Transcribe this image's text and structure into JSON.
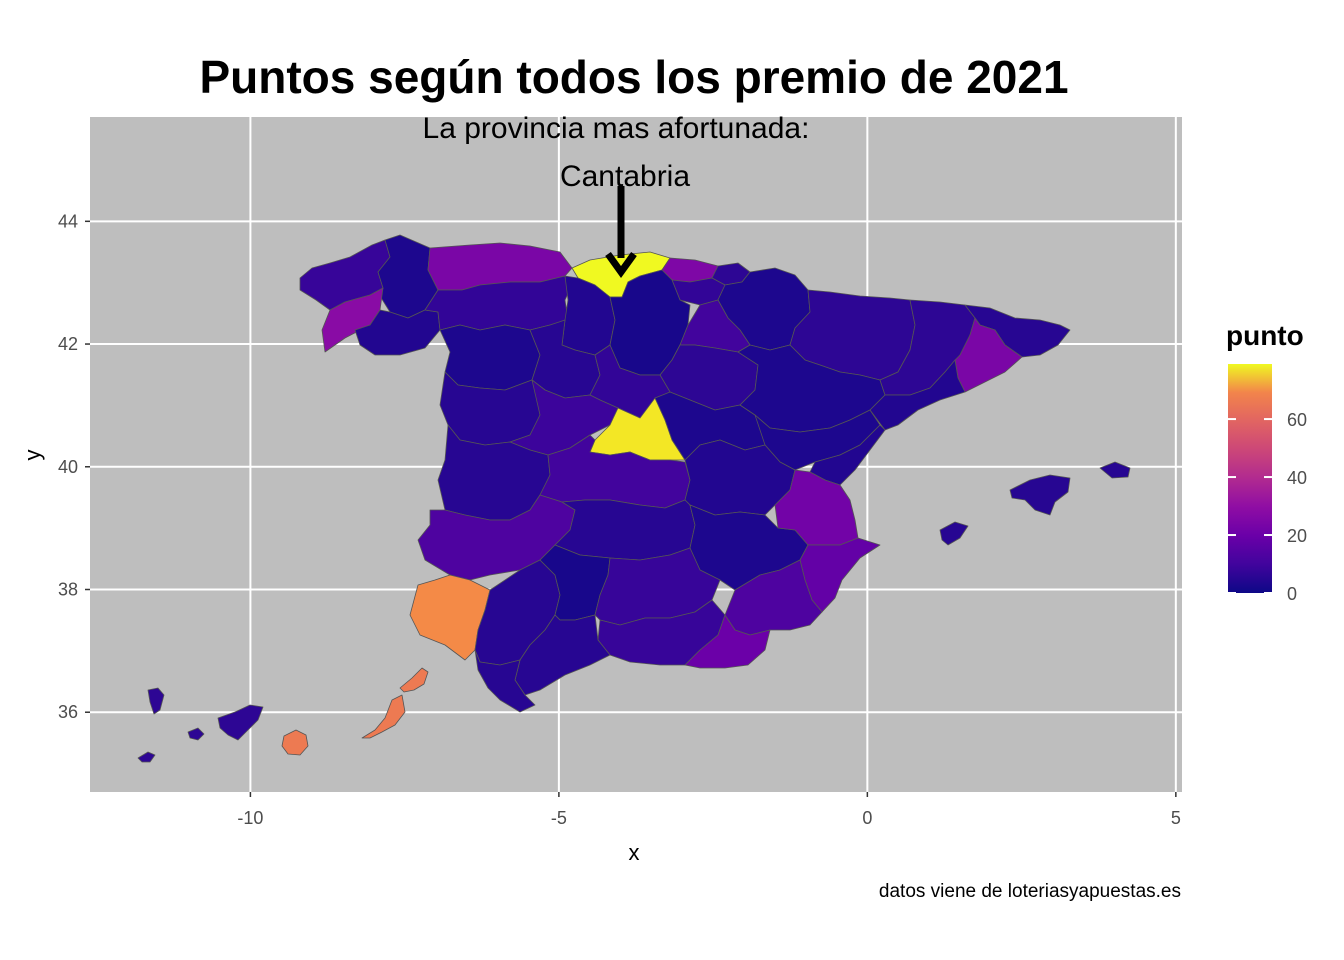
{
  "title": "Puntos según todos los premio de 2021",
  "annotation": {
    "line1": "La provincia mas afortunada:",
    "line2": "Cantabria"
  },
  "caption": "datos viene de loteriasyapuestas.es",
  "axes": {
    "x_title": "x",
    "y_title": "y",
    "x_ticks": [
      -10,
      -5,
      0,
      5
    ],
    "y_ticks": [
      36,
      38,
      40,
      42,
      44
    ],
    "x_range": [
      -12.6,
      5.1
    ],
    "y_range": [
      34.7,
      45.7
    ]
  },
  "legend": {
    "title": "punto",
    "ticks": [
      0,
      20,
      40,
      60
    ],
    "range": [
      0,
      79
    ],
    "colormap": "plasma"
  },
  "colors": {
    "panel_bg": "#bebebe",
    "grid": "#ffffff",
    "border": "#555555",
    "arrow": "#000000"
  },
  "map_data": {
    "highlight": "Cantabria",
    "regions": [
      {
        "name": "A Coruña",
        "value": 8
      },
      {
        "name": "Lugo",
        "value": 3
      },
      {
        "name": "Pontevedra",
        "value": 28
      },
      {
        "name": "Ourense",
        "value": 4
      },
      {
        "name": "Asturias",
        "value": 24
      },
      {
        "name": "Cantabria",
        "value": 79
      },
      {
        "name": "Bizkaia",
        "value": 25
      },
      {
        "name": "Gipuzkoa",
        "value": 6
      },
      {
        "name": "Araba",
        "value": 7
      },
      {
        "name": "Navarra",
        "value": 3
      },
      {
        "name": "León",
        "value": 7
      },
      {
        "name": "Palencia",
        "value": 4
      },
      {
        "name": "Burgos",
        "value": 2
      },
      {
        "name": "La Rioja",
        "value": 10
      },
      {
        "name": "Zamora",
        "value": 3
      },
      {
        "name": "Valladolid",
        "value": 5
      },
      {
        "name": "Soria",
        "value": 6
      },
      {
        "name": "Segovia",
        "value": 7
      },
      {
        "name": "Salamanca",
        "value": 5
      },
      {
        "name": "Ávila",
        "value": 9
      },
      {
        "name": "Madrid",
        "value": 78
      },
      {
        "name": "Guadalajara",
        "value": 3
      },
      {
        "name": "Huesca",
        "value": 6
      },
      {
        "name": "Zaragoza",
        "value": 3
      },
      {
        "name": "Teruel",
        "value": 3
      },
      {
        "name": "Lleida",
        "value": 6
      },
      {
        "name": "Girona",
        "value": 5
      },
      {
        "name": "Barcelona",
        "value": 24
      },
      {
        "name": "Tarragona",
        "value": 4
      },
      {
        "name": "Cáceres",
        "value": 5
      },
      {
        "name": "Toledo",
        "value": 10
      },
      {
        "name": "Cuenca",
        "value": 4
      },
      {
        "name": "Castellón",
        "value": 4
      },
      {
        "name": "Badajoz",
        "value": 13
      },
      {
        "name": "Ciudad Real",
        "value": 5
      },
      {
        "name": "Albacete",
        "value": 3
      },
      {
        "name": "Valencia",
        "value": 22
      },
      {
        "name": "Alicante",
        "value": 18
      },
      {
        "name": "Huelva",
        "value": 70
      },
      {
        "name": "Sevilla",
        "value": 5
      },
      {
        "name": "Córdoba",
        "value": 2
      },
      {
        "name": "Jaén",
        "value": 8
      },
      {
        "name": "Granada",
        "value": 8
      },
      {
        "name": "Murcia",
        "value": 13
      },
      {
        "name": "Almería",
        "value": 20
      },
      {
        "name": "Málaga",
        "value": 5
      },
      {
        "name": "Cádiz",
        "value": 5
      },
      {
        "name": "Illes Balears",
        "value": 5
      },
      {
        "name": "Santa Cruz de Tenerife",
        "value": 6
      },
      {
        "name": "Las Palmas",
        "value": 66
      }
    ]
  }
}
